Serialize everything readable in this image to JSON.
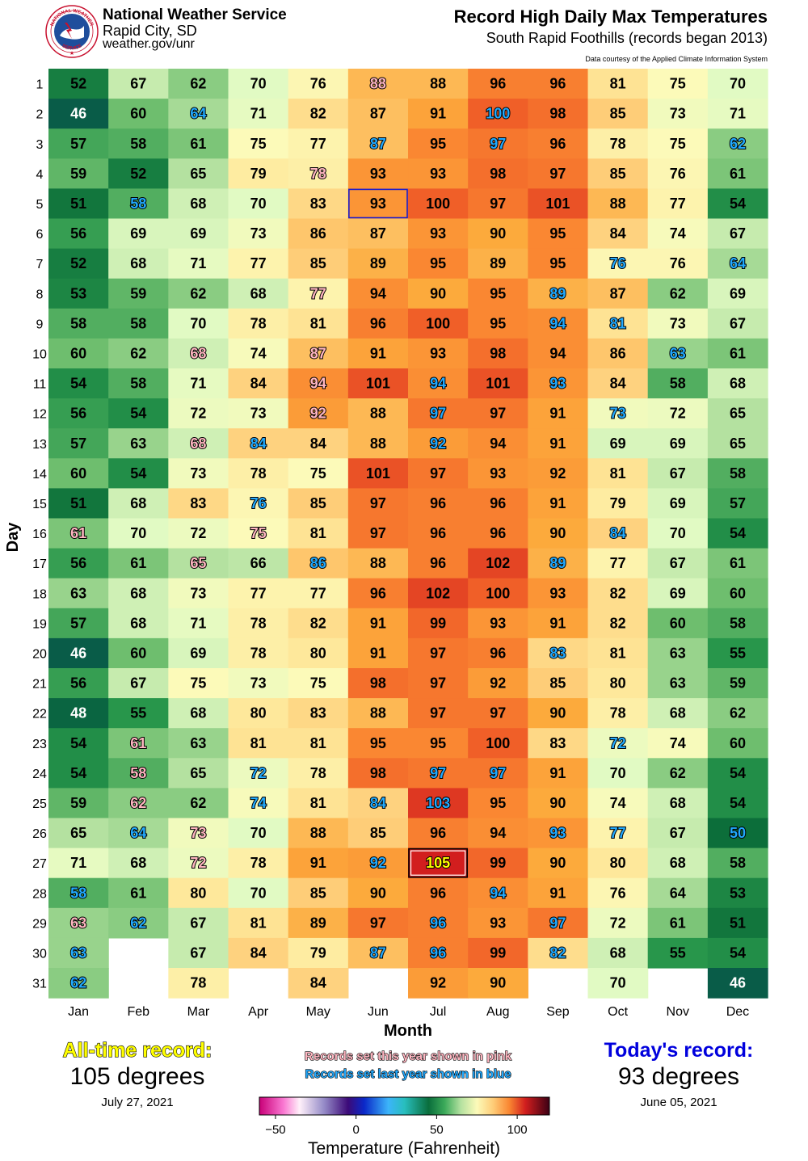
{
  "header": {
    "org_name": "National Weather Service",
    "org_city": "Rapid City, SD",
    "org_url": "weather.gov/unr",
    "logo_text_top": "NATIONAL WEATHER",
    "logo_text_bottom": "SERVICE",
    "title": "Record High Daily Max Temperatures",
    "subtitle": "South Rapid Foothills (records began 2013)",
    "credit": "Data courtesy of the Applied Climate Information System"
  },
  "chart_data": {
    "type": "heatmap",
    "xlabel": "Month",
    "ylabel": "Day",
    "months": [
      "Jan",
      "Feb",
      "Mar",
      "Apr",
      "May",
      "Jun",
      "Jul",
      "Aug",
      "Sep",
      "Oct",
      "Nov",
      "Dec"
    ],
    "days": [
      "1",
      "2",
      "3",
      "4",
      "5",
      "6",
      "7",
      "8",
      "9",
      "10",
      "11",
      "12",
      "13",
      "14",
      "15",
      "16",
      "17",
      "18",
      "19",
      "20",
      "21",
      "22",
      "23",
      "24",
      "25",
      "26",
      "27",
      "28",
      "29",
      "30",
      "31"
    ],
    "values": [
      [
        52,
        46,
        57,
        59,
        51,
        56,
        52,
        53,
        58,
        60,
        54,
        56,
        57,
        60,
        51,
        61,
        56,
        63,
        57,
        46,
        56,
        48,
        54,
        54,
        59,
        65,
        71,
        58,
        63,
        63,
        62
      ],
      [
        67,
        60,
        58,
        52,
        58,
        69,
        68,
        59,
        58,
        62,
        58,
        54,
        63,
        54,
        68,
        70,
        61,
        68,
        68,
        60,
        67,
        55,
        61,
        58,
        62,
        64,
        68,
        61,
        62,
        null,
        null
      ],
      [
        62,
        64,
        61,
        65,
        68,
        69,
        71,
        62,
        70,
        68,
        71,
        72,
        68,
        73,
        83,
        72,
        65,
        73,
        71,
        69,
        75,
        68,
        63,
        65,
        62,
        73,
        72,
        80,
        67,
        67,
        78
      ],
      [
        70,
        71,
        75,
        79,
        70,
        73,
        77,
        68,
        78,
        74,
        84,
        73,
        84,
        78,
        76,
        75,
        66,
        77,
        78,
        78,
        73,
        80,
        81,
        72,
        74,
        70,
        78,
        70,
        81,
        84,
        null
      ],
      [
        76,
        82,
        77,
        78,
        83,
        86,
        85,
        77,
        81,
        87,
        94,
        92,
        84,
        75,
        85,
        81,
        86,
        77,
        82,
        80,
        75,
        83,
        81,
        78,
        81,
        88,
        91,
        85,
        89,
        79,
        84
      ],
      [
        88,
        87,
        87,
        93,
        93,
        87,
        89,
        94,
        96,
        91,
        101,
        88,
        88,
        101,
        97,
        97,
        88,
        96,
        91,
        91,
        98,
        88,
        95,
        98,
        84,
        85,
        92,
        90,
        97,
        87,
        null
      ],
      [
        88,
        91,
        95,
        93,
        100,
        93,
        95,
        90,
        100,
        93,
        94,
        97,
        92,
        97,
        96,
        96,
        96,
        102,
        99,
        97,
        97,
        97,
        95,
        97,
        103,
        96,
        105,
        96,
        96,
        96,
        92
      ],
      [
        96,
        100,
        97,
        98,
        97,
        90,
        89,
        95,
        95,
        98,
        101,
        97,
        94,
        93,
        96,
        96,
        102,
        100,
        93,
        96,
        92,
        97,
        100,
        97,
        95,
        94,
        99,
        94,
        93,
        99,
        90
      ],
      [
        96,
        98,
        96,
        97,
        101,
        95,
        95,
        89,
        94,
        94,
        93,
        91,
        91,
        92,
        91,
        90,
        89,
        93,
        91,
        83,
        85,
        90,
        83,
        91,
        90,
        93,
        90,
        91,
        97,
        82,
        null
      ],
      [
        81,
        85,
        78,
        85,
        88,
        84,
        76,
        87,
        81,
        86,
        84,
        73,
        69,
        81,
        79,
        84,
        77,
        82,
        82,
        81,
        80,
        78,
        72,
        70,
        74,
        77,
        80,
        76,
        72,
        68,
        70
      ],
      [
        75,
        73,
        75,
        76,
        77,
        74,
        76,
        62,
        73,
        63,
        58,
        72,
        69,
        67,
        69,
        70,
        67,
        69,
        60,
        63,
        63,
        68,
        74,
        62,
        68,
        67,
        68,
        64,
        61,
        55,
        null
      ],
      [
        70,
        71,
        62,
        61,
        54,
        67,
        64,
        69,
        67,
        61,
        68,
        65,
        65,
        58,
        57,
        54,
        61,
        60,
        58,
        55,
        59,
        62,
        60,
        54,
        54,
        50,
        58,
        53,
        51,
        54,
        46
      ]
    ],
    "this_year_records": [
      {
        "month": "Jan",
        "day": 16
      },
      {
        "month": "Jan",
        "day": 29
      },
      {
        "month": "Feb",
        "day": 23
      },
      {
        "month": "Feb",
        "day": 24
      },
      {
        "month": "Feb",
        "day": 25
      },
      {
        "month": "Mar",
        "day": 10
      },
      {
        "month": "Mar",
        "day": 13
      },
      {
        "month": "Mar",
        "day": 17
      },
      {
        "month": "Mar",
        "day": 26
      },
      {
        "month": "Mar",
        "day": 27
      },
      {
        "month": "Apr",
        "day": 16
      },
      {
        "month": "May",
        "day": 4
      },
      {
        "month": "May",
        "day": 8
      },
      {
        "month": "May",
        "day": 10
      },
      {
        "month": "May",
        "day": 11
      },
      {
        "month": "May",
        "day": 12
      },
      {
        "month": "Jun",
        "day": 1
      }
    ],
    "last_year_records": [
      {
        "month": "Jan",
        "day": 28
      },
      {
        "month": "Jan",
        "day": 30
      },
      {
        "month": "Jan",
        "day": 31
      },
      {
        "month": "Feb",
        "day": 5
      },
      {
        "month": "Feb",
        "day": 26
      },
      {
        "month": "Feb",
        "day": 29
      },
      {
        "month": "Mar",
        "day": 2
      },
      {
        "month": "Apr",
        "day": 13
      },
      {
        "month": "Apr",
        "day": 15
      },
      {
        "month": "Apr",
        "day": 24
      },
      {
        "month": "Apr",
        "day": 25
      },
      {
        "month": "May",
        "day": 17
      },
      {
        "month": "Jun",
        "day": 3
      },
      {
        "month": "Jun",
        "day": 25
      },
      {
        "month": "Jun",
        "day": 27
      },
      {
        "month": "Jun",
        "day": 30
      },
      {
        "month": "Jul",
        "day": 11
      },
      {
        "month": "Jul",
        "day": 12
      },
      {
        "month": "Jul",
        "day": 13
      },
      {
        "month": "Jul",
        "day": 24
      },
      {
        "month": "Jul",
        "day": 25
      },
      {
        "month": "Jul",
        "day": 29
      },
      {
        "month": "Jul",
        "day": 30
      },
      {
        "month": "Aug",
        "day": 2
      },
      {
        "month": "Aug",
        "day": 3
      },
      {
        "month": "Aug",
        "day": 24
      },
      {
        "month": "Aug",
        "day": 28
      },
      {
        "month": "Sep",
        "day": 8
      },
      {
        "month": "Sep",
        "day": 9
      },
      {
        "month": "Sep",
        "day": 11
      },
      {
        "month": "Sep",
        "day": 17
      },
      {
        "month": "Sep",
        "day": 20
      },
      {
        "month": "Sep",
        "day": 26
      },
      {
        "month": "Sep",
        "day": 29
      },
      {
        "month": "Sep",
        "day": 30
      },
      {
        "month": "Oct",
        "day": 7
      },
      {
        "month": "Oct",
        "day": 9
      },
      {
        "month": "Oct",
        "day": 12
      },
      {
        "month": "Oct",
        "day": 16
      },
      {
        "month": "Oct",
        "day": 23
      },
      {
        "month": "Oct",
        "day": 26
      },
      {
        "month": "Nov",
        "day": 10
      },
      {
        "month": "Dec",
        "day": 3
      },
      {
        "month": "Dec",
        "day": 7
      },
      {
        "month": "Dec",
        "day": 26
      }
    ],
    "highlight_all_time": {
      "month": "Jul",
      "day": 27
    },
    "highlight_today": {
      "month": "Jun",
      "day": 5
    },
    "colorbar": {
      "label": "Temperature (Fahrenheit)",
      "ticks": [
        -50,
        0,
        50,
        100
      ],
      "range": [
        -60,
        120
      ]
    }
  },
  "records": {
    "all_time_heading": "All-time record:",
    "all_time_value": "105 degrees",
    "all_time_date": "July 27, 2021",
    "today_heading": "Today's record:",
    "today_value": "93 degrees",
    "today_date": "June 05, 2021",
    "note_this_year": "Records set this year shown in pink",
    "note_last_year": "Records set last year shown in blue"
  },
  "colors": {
    "this_year_text": "#ffb6c1",
    "last_year_text": "#22aaff",
    "all_time_text": "#ffff00",
    "today_heading": "#0000dd",
    "today_box": "#1a1acc",
    "all_time_box": "#000000"
  }
}
